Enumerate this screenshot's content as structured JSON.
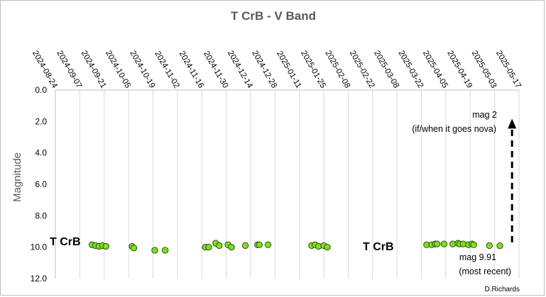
{
  "chart_data": {
    "type": "scatter",
    "title": "T CrB - V Band",
    "ylabel": "Magnitude",
    "xlabel": "",
    "ylim": [
      0,
      12
    ],
    "y_inverted": true,
    "y_ticks": [
      "0.0",
      "2.0",
      "4.0",
      "6.0",
      "8.0",
      "10.0",
      "12.0"
    ],
    "xlim": [
      "2024-08-24",
      "2025-05-17"
    ],
    "x_ticks": [
      "2024-08-24",
      "2024-09-07",
      "2024-09-21",
      "2024-10-05",
      "2024-10-19",
      "2024-11-02",
      "2024-11-16",
      "2024-11-30",
      "2024-12-14",
      "2024-12-28",
      "2025-01-11",
      "2025-01-25",
      "2025-02-08",
      "2025-02-22",
      "2025-03-08",
      "2025-03-22",
      "2025-04-05",
      "2025-04-19",
      "2025-05-03",
      "2025-05-17"
    ],
    "gridlines": "vertical",
    "marker_color": "#7ee01e",
    "series": [
      {
        "points": [
          {
            "x": "2024-09-14",
            "y": 9.85
          },
          {
            "x": "2024-09-16",
            "y": 9.9
          },
          {
            "x": "2024-09-18",
            "y": 9.95
          },
          {
            "x": "2024-09-20",
            "y": 9.9
          },
          {
            "x": "2024-09-22",
            "y": 9.95
          },
          {
            "x": "2024-10-07",
            "y": 9.95
          },
          {
            "x": "2024-10-08",
            "y": 10.05
          },
          {
            "x": "2024-10-20",
            "y": 10.2
          },
          {
            "x": "2024-10-26",
            "y": 10.2
          },
          {
            "x": "2024-11-18",
            "y": 10.0
          },
          {
            "x": "2024-11-20",
            "y": 10.0
          },
          {
            "x": "2024-11-24",
            "y": 9.75
          },
          {
            "x": "2024-11-26",
            "y": 9.9
          },
          {
            "x": "2024-12-01",
            "y": 9.85
          },
          {
            "x": "2024-12-03",
            "y": 10.0
          },
          {
            "x": "2024-12-11",
            "y": 9.9
          },
          {
            "x": "2024-12-18",
            "y": 9.85
          },
          {
            "x": "2024-12-19",
            "y": 9.85
          },
          {
            "x": "2024-12-24",
            "y": 9.85
          },
          {
            "x": "2025-01-18",
            "y": 9.9
          },
          {
            "x": "2025-01-20",
            "y": 9.85
          },
          {
            "x": "2025-01-22",
            "y": 9.95
          },
          {
            "x": "2025-01-25",
            "y": 9.9
          },
          {
            "x": "2025-01-27",
            "y": 10.0
          },
          {
            "x": "2025-03-25",
            "y": 9.85
          },
          {
            "x": "2025-03-28",
            "y": 9.85
          },
          {
            "x": "2025-03-30",
            "y": 9.8
          },
          {
            "x": "2025-03-31",
            "y": 9.8
          },
          {
            "x": "2025-04-04",
            "y": 9.8
          },
          {
            "x": "2025-04-09",
            "y": 9.8
          },
          {
            "x": "2025-04-12",
            "y": 9.75
          },
          {
            "x": "2025-04-13",
            "y": 9.8
          },
          {
            "x": "2025-04-15",
            "y": 9.8
          },
          {
            "x": "2025-04-18",
            "y": 9.85
          },
          {
            "x": "2025-04-20",
            "y": 9.8
          },
          {
            "x": "2025-04-21",
            "y": 9.85
          },
          {
            "x": "2025-04-30",
            "y": 9.9
          },
          {
            "x": "2025-05-06",
            "y": 9.91
          }
        ]
      }
    ],
    "annotations": {
      "series_label": "T CrB",
      "nova_label_line1": "mag 2",
      "nova_label_line2": "(if/when it goes nova)",
      "nova_arrow": {
        "x": "2025-05-13",
        "y_from": 9.7,
        "y_to": 2.0
      },
      "recent_line1": "mag 9.91",
      "recent_line2": "(most recent)",
      "credit": "D.Richards"
    }
  }
}
